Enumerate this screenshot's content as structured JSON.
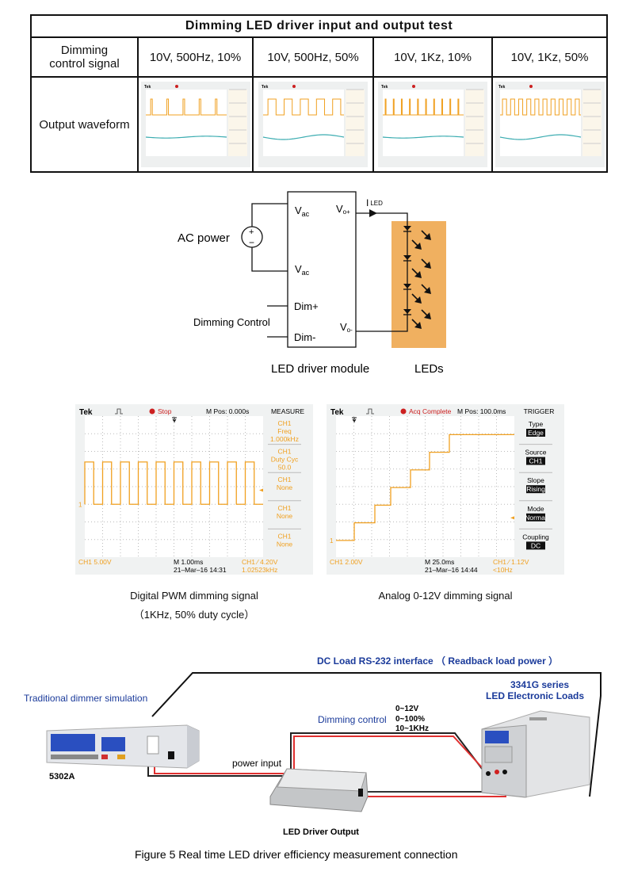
{
  "table": {
    "title": "Dimming LED driver input and output test",
    "row_header_signal": "Dimming control signal",
    "row_header_signal_line1": "Dimming",
    "row_header_signal_line2": "control signal",
    "row_header_output": "Output waveform",
    "columns": [
      {
        "label": "10V, 500Hz, 10%",
        "freq_hz": 500,
        "duty": 0.1
      },
      {
        "label": "10V, 500Hz, 50%",
        "freq_hz": 500,
        "duty": 0.5
      },
      {
        "label": "10V, 1Kz, 10%",
        "freq_hz": 1000,
        "duty": 0.1
      },
      {
        "label": "10V, 1Kz, 50%",
        "freq_hz": 1000,
        "duty": 0.5
      }
    ]
  },
  "circuit": {
    "ac_power": "AC power",
    "vac_top": "V",
    "vac_top_sub": "ac",
    "vac_bottom": "V",
    "vac_bottom_sub": "ac",
    "vo_plus": "V",
    "vo_plus_sub": "o+",
    "vo_minus": "V",
    "vo_minus_sub": "o-",
    "iled": "I",
    "iled_sub": "LED",
    "dim_plus": "Dim+",
    "dim_minus": "Dim-",
    "dimming_control": "Dimming Control",
    "driver_label": "LED driver module",
    "leds_label": "LEDs",
    "led_fill": "#f0b060"
  },
  "scopes": {
    "pwm": {
      "brand": "Tek",
      "status": "Stop",
      "mpos": "M Pos: 0.000s",
      "menu_title": "MEASURE",
      "menu": [
        {
          "l1": "CH1",
          "l2": "Freq",
          "l3": "1.000kHz"
        },
        {
          "l1": "CH1",
          "l2": "Duty Cyc",
          "l3": "50.0"
        },
        {
          "l1": "CH1",
          "l2": "None"
        },
        {
          "l1": "CH1",
          "l2": "None"
        },
        {
          "l1": "CH1",
          "l2": "None"
        }
      ],
      "ch_scale": "CH1  5.00V",
      "timebase": "M 1.00ms",
      "date": "21–Mar–16 14:31",
      "trigger": "CH1  ∕  4.20V",
      "trigger_freq": "1.02523kHz",
      "marker": "1",
      "caption_line1": "Digital PWM dimming signal",
      "caption_line2": "（1KHz, 50% duty cycle）",
      "duty": 0.5,
      "freq_hz": 1000
    },
    "analog": {
      "brand": "Tek",
      "status": "Acq Complete",
      "mpos": "M Pos: 100.0ms",
      "menu_title": "TRIGGER",
      "menu": [
        {
          "l1": "Type",
          "l2": "Edge"
        },
        {
          "l1": "Source",
          "l2": "CH1"
        },
        {
          "l1": "Slope",
          "l2": "Rising"
        },
        {
          "l1": "Mode",
          "l2": "Normal"
        },
        {
          "l1": "Coupling",
          "l2": "DC"
        }
      ],
      "ch_scale": "CH1  2.00V",
      "timebase": "M 25.0ms",
      "date": "21–Mar–16 14:44",
      "trigger": "CH1  ∕  1.12V",
      "trigger_freq": "<10Hz",
      "marker": "1",
      "caption": "Analog 0-12V dimming signal",
      "step_levels_v": [
        0,
        2,
        4,
        6,
        8,
        10,
        12
      ]
    },
    "trace_color": "#f0a020",
    "status_color": "#cc2020"
  },
  "setup": {
    "rs232": "DC Load RS-232 interface （ Readback load power ）",
    "dimmer_sim": "Traditional dimmer simulation",
    "model_5302a": "5302A",
    "load_series": "3341G series",
    "load_name": "LED Electronic Loads",
    "dimming_control": "Dimming control",
    "dim_specs": [
      "0~12V",
      "0~100%",
      "10~1KHz"
    ],
    "power_input": "power input",
    "driver_output": "LED Driver Output",
    "figure_caption": "Figure 5 Real time LED driver efficiency  measurement connection",
    "label_color": "#1a3a9a"
  }
}
